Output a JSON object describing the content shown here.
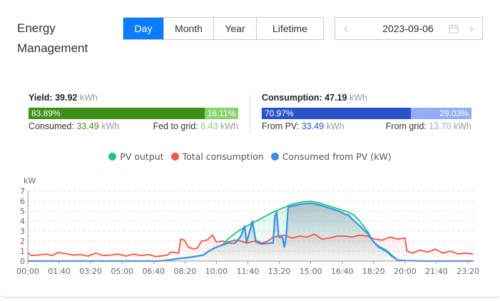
{
  "header": {
    "title": "Energy Management",
    "periods": [
      {
        "label": "Day",
        "active": true
      },
      {
        "label": "Month",
        "active": false
      },
      {
        "label": "Year",
        "active": false
      },
      {
        "label": "Lifetime",
        "active": false
      }
    ],
    "date": "2023-09-06",
    "icons": {
      "prev": "chevron-left-icon",
      "next": "chevron-right-icon",
      "calendar": "calendar-icon"
    }
  },
  "yield": {
    "label": "Yield:",
    "value": "39.92",
    "unit": "kWh",
    "bar": [
      {
        "label": "83.89%",
        "pct": 83.89,
        "color": "#3d8f18"
      },
      {
        "label": "16.11%",
        "pct": 16.11,
        "color": "#86d46a"
      }
    ],
    "left": {
      "label": "Consumed:",
      "value": "33.49",
      "unit": "kWh",
      "color": "#3d8f18"
    },
    "right": {
      "label": "Fed to grid:",
      "value": "6.43",
      "unit": "kWh",
      "color": "#86d46a"
    }
  },
  "consumption": {
    "label": "Consumption:",
    "value": "47.19",
    "unit": "kWh",
    "bar": [
      {
        "label": "70.97%",
        "pct": 70.97,
        "color": "#2a52c9"
      },
      {
        "label": "29.03%",
        "pct": 29.03,
        "color": "#93acf5"
      }
    ],
    "left": {
      "label": "From PV:",
      "value": "33.49",
      "unit": "kWh",
      "color": "#2a52c9"
    },
    "right": {
      "label": "From grid:",
      "value": "13.70",
      "unit": "kWh",
      "color": "#93acf5"
    }
  },
  "chart_data": {
    "type": "line",
    "title": "",
    "xlabel": "",
    "ylabel": "kW",
    "ylim": [
      0,
      7
    ],
    "yticks": [
      0,
      1,
      2,
      3,
      4,
      5,
      6,
      7
    ],
    "xticks": [
      "00:00",
      "01:40",
      "03:20",
      "05:00",
      "06:40",
      "08:20",
      "10:00",
      "11:40",
      "13:20",
      "15:00",
      "16:40",
      "18:20",
      "20:00",
      "21:40",
      "23:20"
    ],
    "grid": "horizontal dashed",
    "legend_position": "top",
    "legend": [
      "PV output",
      "Total consumption",
      "Consumed from PV (kW)"
    ],
    "x_unit": "hours",
    "series": [
      {
        "name": "PV output",
        "color": "#1fc77e",
        "points": [
          [
            0,
            0
          ],
          [
            7,
            0
          ],
          [
            7.5,
            0.1
          ],
          [
            8,
            0.25
          ],
          [
            8.5,
            0.35
          ],
          [
            9,
            0.5
          ],
          [
            9.3,
            0.6
          ],
          [
            9.6,
            1.0
          ],
          [
            10,
            1.4
          ],
          [
            10.3,
            1.6
          ],
          [
            10.6,
            2.2
          ],
          [
            11,
            2.8
          ],
          [
            11.5,
            3.4
          ],
          [
            12,
            3.9
          ],
          [
            12.5,
            4.4
          ],
          [
            13,
            4.9
          ],
          [
            13.5,
            5.3
          ],
          [
            14,
            5.7
          ],
          [
            14.5,
            5.9
          ],
          [
            15,
            6.0
          ],
          [
            15.5,
            5.8
          ],
          [
            16,
            5.5
          ],
          [
            16.5,
            5.2
          ],
          [
            17,
            4.9
          ],
          [
            17.3,
            4.6
          ],
          [
            17.6,
            4.0
          ],
          [
            18,
            3.0
          ],
          [
            18.3,
            2.0
          ],
          [
            18.6,
            1.5
          ],
          [
            19,
            1.1
          ],
          [
            19.3,
            0.6
          ],
          [
            19.6,
            0.1
          ],
          [
            20,
            0.05
          ],
          [
            21,
            0
          ],
          [
            23.6,
            0
          ]
        ]
      },
      {
        "name": "Total consumption",
        "color": "#f0564a",
        "points": [
          [
            0,
            0.8
          ],
          [
            0.2,
            0.55
          ],
          [
            0.5,
            0.6
          ],
          [
            1,
            0.7
          ],
          [
            1.3,
            0.55
          ],
          [
            1.6,
            0.85
          ],
          [
            2,
            0.75
          ],
          [
            2.4,
            0.6
          ],
          [
            2.8,
            0.65
          ],
          [
            3.2,
            0.5
          ],
          [
            3.6,
            0.8
          ],
          [
            4,
            0.55
          ],
          [
            4.4,
            0.6
          ],
          [
            4.8,
            0.7
          ],
          [
            5.2,
            0.5
          ],
          [
            5.6,
            0.7
          ],
          [
            6,
            0.55
          ],
          [
            6.4,
            0.65
          ],
          [
            6.8,
            0.45
          ],
          [
            7.2,
            0.55
          ],
          [
            7.4,
            0.6
          ],
          [
            7.6,
            0.9
          ],
          [
            8,
            0.8
          ],
          [
            8.1,
            2.2
          ],
          [
            8.3,
            2.1
          ],
          [
            8.5,
            1.4
          ],
          [
            8.8,
            1.2
          ],
          [
            9,
            1.3
          ],
          [
            9.2,
            2.0
          ],
          [
            9.5,
            2.1
          ],
          [
            9.8,
            2.6
          ],
          [
            10,
            1.9
          ],
          [
            10.3,
            2.0
          ],
          [
            10.6,
            1.9
          ],
          [
            11,
            2.1
          ],
          [
            11.3,
            2.0
          ],
          [
            11.6,
            1.8
          ],
          [
            11.8,
            1.9
          ],
          [
            12,
            2.0
          ],
          [
            12.2,
            2.0
          ],
          [
            12.4,
            1.8
          ],
          [
            12.6,
            1.9
          ],
          [
            12.8,
            2.1
          ],
          [
            13.0,
            2.4
          ],
          [
            13.3,
            2.5
          ],
          [
            13.6,
            2.6
          ],
          [
            14,
            2.3
          ],
          [
            14.4,
            2.5
          ],
          [
            14.8,
            2.4
          ],
          [
            15.2,
            2.7
          ],
          [
            15.6,
            2.2
          ],
          [
            16,
            2.3
          ],
          [
            16.4,
            2.5
          ],
          [
            16.8,
            2.5
          ],
          [
            17.2,
            2.4
          ],
          [
            17.6,
            2.6
          ],
          [
            18,
            2.5
          ],
          [
            18.4,
            2.2
          ],
          [
            18.8,
            2.1
          ],
          [
            19.2,
            2.4
          ],
          [
            19.6,
            2.2
          ],
          [
            20,
            2.3
          ],
          [
            20.1,
            1.0
          ],
          [
            20.4,
            0.8
          ],
          [
            20.8,
            1.1
          ],
          [
            21.2,
            0.9
          ],
          [
            21.6,
            1.2
          ],
          [
            22,
            0.8
          ],
          [
            22.4,
            1.0
          ],
          [
            22.8,
            0.7
          ],
          [
            23.2,
            0.8
          ],
          [
            23.6,
            0.7
          ]
        ]
      },
      {
        "name": "Consumed from PV (kW)",
        "color": "#3a8ee6",
        "points": [
          [
            0,
            0
          ],
          [
            7,
            0
          ],
          [
            7.5,
            0.1
          ],
          [
            8,
            0.25
          ],
          [
            8.5,
            0.35
          ],
          [
            9,
            0.5
          ],
          [
            9.3,
            0.6
          ],
          [
            9.6,
            1.0
          ],
          [
            10,
            1.4
          ],
          [
            10.3,
            1.6
          ],
          [
            10.6,
            1.8
          ],
          [
            11,
            1.8
          ],
          [
            11.3,
            2.5
          ],
          [
            11.5,
            3.5
          ],
          [
            11.6,
            1.9
          ],
          [
            11.8,
            3.2
          ],
          [
            11.9,
            4.0
          ],
          [
            12.1,
            1.9
          ],
          [
            12.4,
            1.7
          ],
          [
            12.8,
            1.8
          ],
          [
            13.0,
            1.8
          ],
          [
            13.1,
            4.5
          ],
          [
            13.2,
            4.9
          ],
          [
            13.3,
            2.4
          ],
          [
            13.5,
            2.4
          ],
          [
            13.6,
            1.4
          ],
          [
            13.7,
            2.5
          ],
          [
            13.8,
            5.4
          ],
          [
            14.0,
            5.5
          ],
          [
            14.5,
            5.7
          ],
          [
            15,
            5.8
          ],
          [
            15.5,
            5.6
          ],
          [
            16,
            5.3
          ],
          [
            16.5,
            5.0
          ],
          [
            16.8,
            4.7
          ],
          [
            17,
            4.6
          ],
          [
            17.2,
            4.2
          ],
          [
            17.6,
            3.5
          ],
          [
            18,
            2.8
          ],
          [
            18.3,
            2.0
          ],
          [
            18.6,
            1.4
          ],
          [
            19,
            1.0
          ],
          [
            19.3,
            0.5
          ],
          [
            19.6,
            0.1
          ],
          [
            20,
            0.05
          ],
          [
            21,
            0
          ],
          [
            23.6,
            0
          ]
        ]
      }
    ]
  }
}
